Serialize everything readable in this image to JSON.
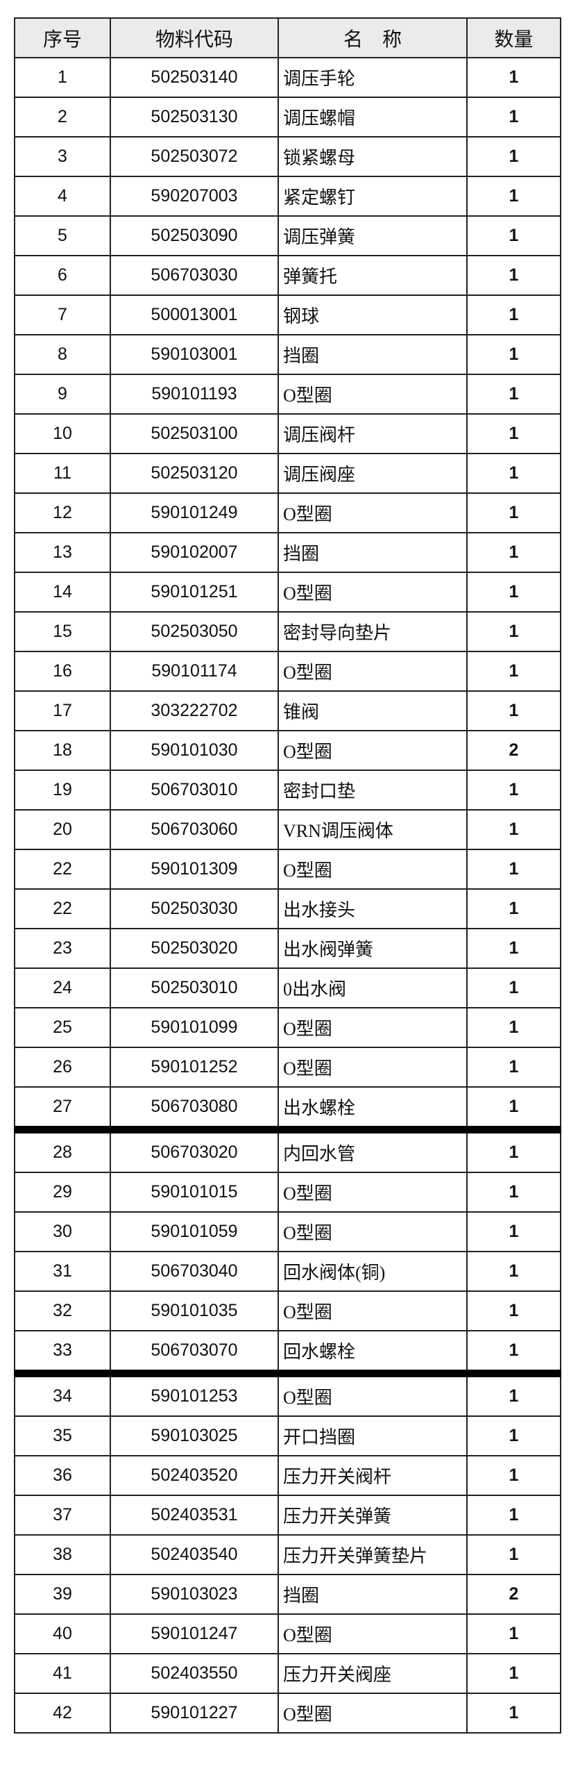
{
  "table": {
    "header": [
      "序号",
      "物料代码",
      "名　称",
      "数量"
    ],
    "rows": [
      [
        1,
        "502503140",
        "调压手轮",
        1
      ],
      [
        2,
        "502503130",
        "调压螺帽",
        1
      ],
      [
        3,
        "502503072",
        "锁紧螺母",
        1
      ],
      [
        4,
        "590207003",
        "紧定螺钉",
        1
      ],
      [
        5,
        "502503090",
        "调压弹簧",
        1
      ],
      [
        6,
        "506703030",
        "弹簧托",
        1
      ],
      [
        7,
        "500013001",
        "钢球",
        1
      ],
      [
        8,
        "590103001",
        "挡圈",
        1
      ],
      [
        9,
        "590101193",
        "O型圈",
        1
      ],
      [
        10,
        "502503100",
        "调压阀杆",
        1
      ],
      [
        11,
        "502503120",
        "调压阀座",
        1
      ],
      [
        12,
        "590101249",
        "O型圈",
        1
      ],
      [
        13,
        "590102007",
        "挡圈",
        1
      ],
      [
        14,
        "590101251",
        "O型圈",
        1
      ],
      [
        15,
        "502503050",
        "密封导向垫片",
        1
      ],
      [
        16,
        "590101174",
        "O型圈",
        1
      ],
      [
        17,
        "303222702",
        "锥阀",
        1
      ],
      [
        18,
        "590101030",
        "O型圈",
        2
      ],
      [
        19,
        "506703010",
        "密封口垫",
        1
      ],
      [
        20,
        "506703060",
        "VRN调压阀体",
        1
      ],
      [
        22,
        "590101309",
        "O型圈",
        1
      ],
      [
        22,
        "502503030",
        "出水接头",
        1
      ],
      [
        23,
        "502503020",
        "出水阀弹簧",
        1
      ],
      [
        24,
        "502503010",
        "0出水阀",
        1
      ],
      [
        25,
        "590101099",
        "O型圈",
        1
      ],
      [
        26,
        "590101252",
        "O型圈",
        1
      ],
      [
        27,
        "506703080",
        "出水螺栓",
        1
      ],
      [
        28,
        "506703020",
        "内回水管",
        1
      ],
      [
        29,
        "590101015",
        "O型圈",
        1
      ],
      [
        30,
        "590101059",
        "O型圈",
        1
      ],
      [
        31,
        "506703040",
        "回水阀体(铜)",
        1
      ],
      [
        32,
        "590101035",
        "O型圈",
        1
      ],
      [
        33,
        "506703070",
        "回水螺栓",
        1
      ],
      [
        34,
        "590101253",
        "O型圈",
        1
      ],
      [
        35,
        "590103025",
        "开口挡圈",
        1
      ],
      [
        36,
        "502403520",
        "压力开关阀杆",
        1
      ],
      [
        37,
        "502403531",
        "压力开关弹簧",
        1
      ],
      [
        38,
        "502403540",
        "压力开关弹簧垫片",
        1
      ],
      [
        39,
        "590103023",
        "挡圈",
        2
      ],
      [
        40,
        "590101247",
        "O型圈",
        1
      ],
      [
        41,
        "502403550",
        "压力开关阀座",
        1
      ],
      [
        42,
        "590101227",
        "O型圈",
        1
      ]
    ]
  }
}
